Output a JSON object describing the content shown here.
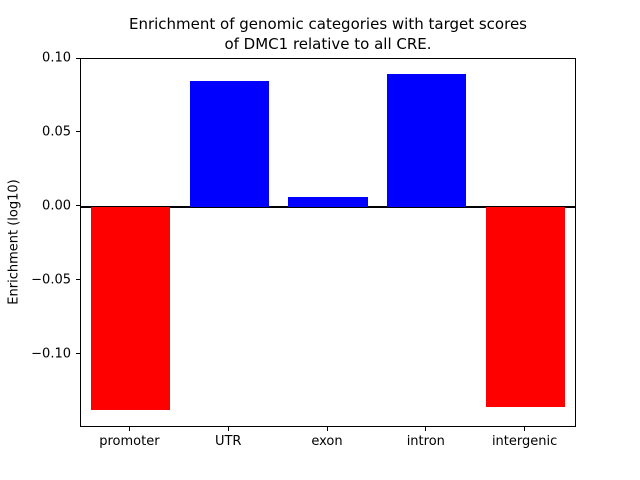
{
  "chart_data": {
    "type": "bar",
    "title": "Enrichment of genomic categories with target scores of DMC1 relative to all CRE.",
    "title_line1": "Enrichment of genomic categories with target scores",
    "title_line2": "of DMC1 relative to all CRE.",
    "categories": [
      "promoter",
      "UTR",
      "exon",
      "intron",
      "intergenic"
    ],
    "values": [
      -0.137,
      0.085,
      0.007,
      0.09,
      -0.135
    ],
    "bar_colors": [
      "#ff0000",
      "#0000ff",
      "#0000ff",
      "#0000ff",
      "#ff0000"
    ],
    "positive_color": "#0000ff",
    "negative_color": "#ff0000",
    "xlabel": "",
    "ylabel": "Enrichment (log10)",
    "ylim": [
      -0.148,
      0.1
    ],
    "yticks": [
      {
        "value": 0.1,
        "label": "0.10"
      },
      {
        "value": 0.05,
        "label": "0.05"
      },
      {
        "value": 0.0,
        "label": "0.00"
      },
      {
        "value": -0.05,
        "label": "−0.05"
      },
      {
        "value": -0.1,
        "label": "−0.10"
      }
    ],
    "zero_line": true,
    "grid": false,
    "legend": "none"
  }
}
